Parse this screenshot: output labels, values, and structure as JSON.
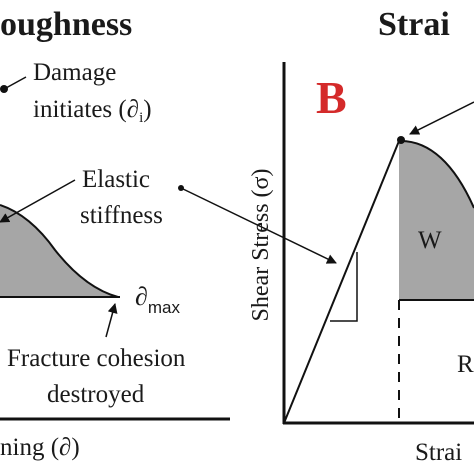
{
  "left_panel": {
    "title": "oughness",
    "damage_line1": "Damage",
    "damage_line2": "initiates (∂",
    "damage_sub": "i",
    "damage_close": ")",
    "elastic_line1": "Elastic",
    "elastic_line2": "stiffness",
    "dmax_symbol": "∂",
    "dmax_sub": "max",
    "fracture_line1": "Fracture cohesion",
    "fracture_line2": "destroyed",
    "x_axis_label": "ning (∂)"
  },
  "right_panel": {
    "title": "Strai",
    "panel_letter": "B",
    "y_axis_label": "Shear Stress (σ)",
    "region_w": "W",
    "region_r": "R",
    "x_axis_label": "Strai"
  },
  "colors": {
    "fill_gray": "#a6a6a6",
    "panel_letter": "#d42a2a",
    "line": "#111111"
  }
}
